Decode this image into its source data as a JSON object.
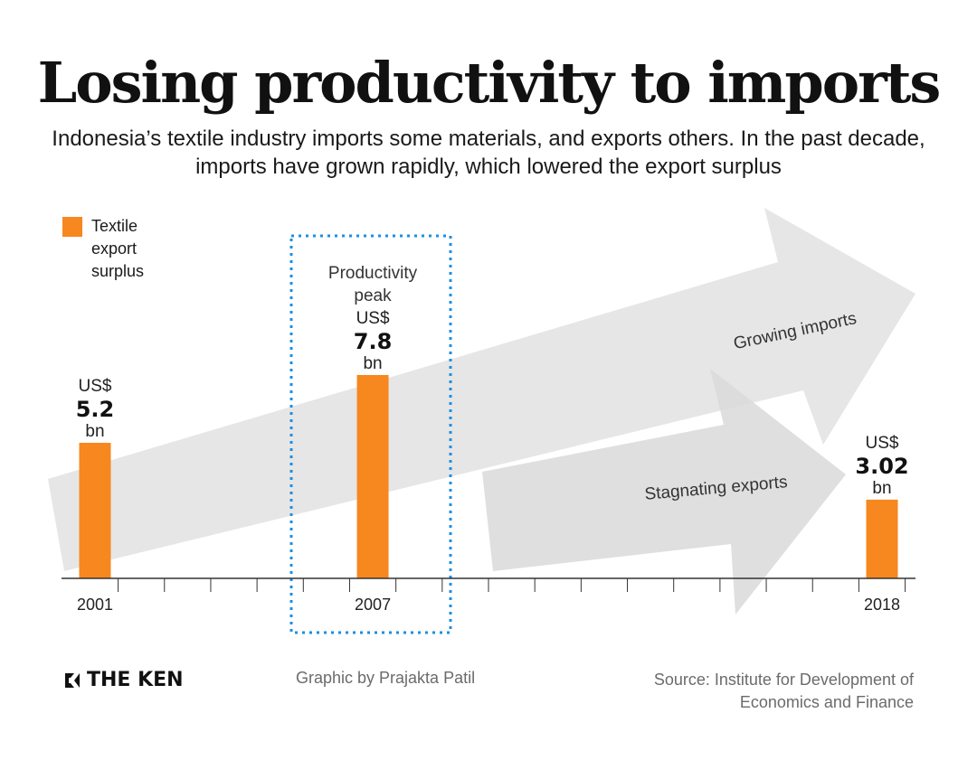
{
  "title": "Losing productivity to imports",
  "subtitle": "Indonesia’s textile industry imports some materials, and exports others. In the past decade, imports have grown rapidly, which lowered the export surplus",
  "legend": {
    "label": "Textile export surplus",
    "color": "#f7871f"
  },
  "chart_data": {
    "type": "bar",
    "title": "Losing productivity to imports",
    "series_name": "Textile export surplus",
    "unit_prefix": "US$",
    "unit_suffix": "bn",
    "x_range": [
      2001,
      2019
    ],
    "ylim": [
      0,
      12
    ],
    "bars": [
      {
        "year": "2001",
        "value": 5.2,
        "value_label": "5.2"
      },
      {
        "year": "2007",
        "value": 7.8,
        "value_label": "7.8"
      },
      {
        "year": "2018",
        "value": 3.02,
        "value_label": "3.02"
      }
    ],
    "highlight": {
      "year": "2007",
      "label": "Productivity peak"
    },
    "annotations": [
      "Growing imports",
      "Stagnating exports"
    ],
    "bar_color": "#f7871f"
  },
  "footer": {
    "logo": "THE KEN",
    "credit": "Graphic by Prajakta Patil",
    "source": "Source: Institute for Development of Economics and Finance"
  }
}
